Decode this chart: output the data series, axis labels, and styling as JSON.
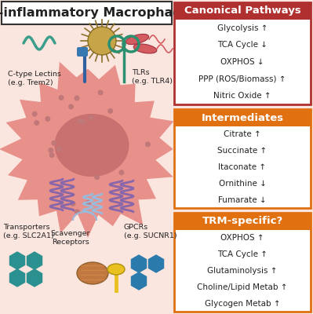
{
  "title": "Pro-inflammatory Macrophages",
  "title_fontsize": 11.5,
  "bg_color": "#FAE5DF",
  "panel1_header": "Canonical Pathways",
  "panel1_header_color": "#B03030",
  "panel1_border_color": "#B03030",
  "panel1_items": [
    "Glycolysis ↑",
    "TCA Cycle ↓",
    "OXPHOS ↓",
    "PPP (ROS/Biomass) ↑",
    "Nitric Oxide ↑"
  ],
  "panel2_header": "Intermediates",
  "panel2_header_color": "#E07010",
  "panel2_border_color": "#E07010",
  "panel2_items": [
    "Citrate ↑",
    "Succinate ↑",
    "Itaconate ↑",
    "Ornithine ↓",
    "Fumarate ↓"
  ],
  "panel3_header": "TRM-specific?",
  "panel3_header_color": "#E07010",
  "panel3_border_color": "#E07010",
  "panel3_items": [
    "OXPHOS ↑",
    "TCA Cycle ↑",
    "Glutaminolysis ↑",
    "Choline/Lipid Metab ↑",
    "Glycogen Metab ↑"
  ],
  "cell_color": "#E8908A",
  "cell_nucleus_color": "#C97070",
  "cell_dot_color": "#C07878",
  "item_fontsize": 7.5,
  "header_fontsize": 9.5,
  "label_fontsize": 6.8
}
